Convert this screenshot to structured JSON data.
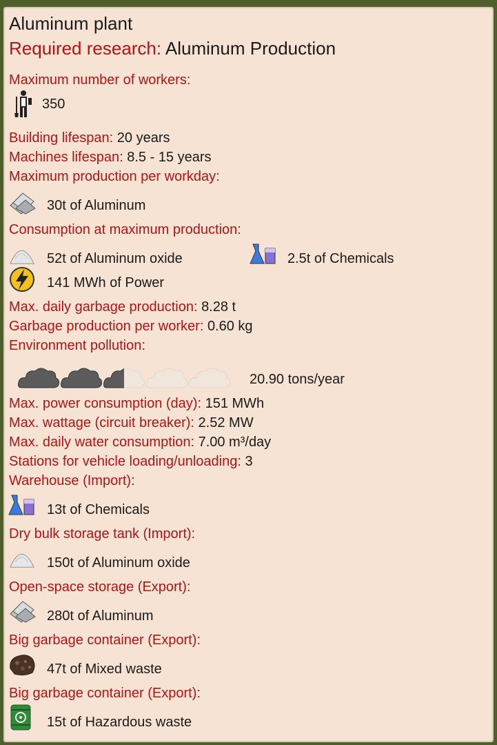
{
  "title": "Aluminum plant",
  "research": {
    "label": "Required research:",
    "value": "Aluminum Production"
  },
  "workers": {
    "label": "Maximum number of workers:",
    "value": "350",
    "icon": "worker-icon"
  },
  "building_lifespan": {
    "label": "Building lifespan:",
    "value": "20 years"
  },
  "machines_lifespan": {
    "label": "Machines lifespan:",
    "value": "8.5 - 15 years"
  },
  "production": {
    "label": "Maximum production per workday:",
    "items": [
      {
        "icon": "aluminum-icon",
        "text": "30t of Aluminum"
      }
    ]
  },
  "consumption": {
    "label": "Consumption at maximum production:",
    "items": [
      {
        "icon": "aluminum-oxide-icon",
        "text": "52t of Aluminum oxide"
      },
      {
        "icon": "chemicals-icon",
        "text": "2.5t of Chemicals"
      },
      {
        "icon": "power-icon",
        "text": "141 MWh of Power"
      }
    ]
  },
  "garbage_daily": {
    "label": "Max. daily garbage production:",
    "value": "8.28 t"
  },
  "garbage_worker": {
    "label": "Garbage production per worker:",
    "value": "0.60 kg"
  },
  "pollution": {
    "label": "Environment pollution:",
    "value": "20.90 tons/year",
    "level_clouds": 2.5,
    "max_clouds": 6
  },
  "power_day": {
    "label": "Max. power consumption (day):",
    "value": "151 MWh"
  },
  "wattage": {
    "label": "Max. wattage (circuit breaker):",
    "value": "2.52 MW"
  },
  "water": {
    "label": "Max. daily water consumption:",
    "value": "7.00 m³/day"
  },
  "stations": {
    "label": "Stations for vehicle loading/unloading:",
    "value": "3"
  },
  "warehouse": {
    "label": "Warehouse (Import):",
    "text": "13t of Chemicals",
    "icon": "chemicals-icon"
  },
  "drybulk": {
    "label": "Dry bulk storage tank (Import):",
    "text": "150t of Aluminum oxide",
    "icon": "aluminum-oxide-icon"
  },
  "openspace": {
    "label": "Open-space storage (Export):",
    "text": "280t of Aluminum",
    "icon": "aluminum-icon"
  },
  "garbage1": {
    "label": "Big garbage container (Export):",
    "text": "47t of Mixed waste",
    "icon": "mixed-waste-icon"
  },
  "garbage2": {
    "label": "Big garbage container (Export):",
    "text": "15t of Hazardous waste",
    "icon": "hazardous-waste-icon"
  },
  "colors": {
    "label_red": "#b01414",
    "text": "#1a1a1a",
    "panel": "#f6e3d4"
  }
}
